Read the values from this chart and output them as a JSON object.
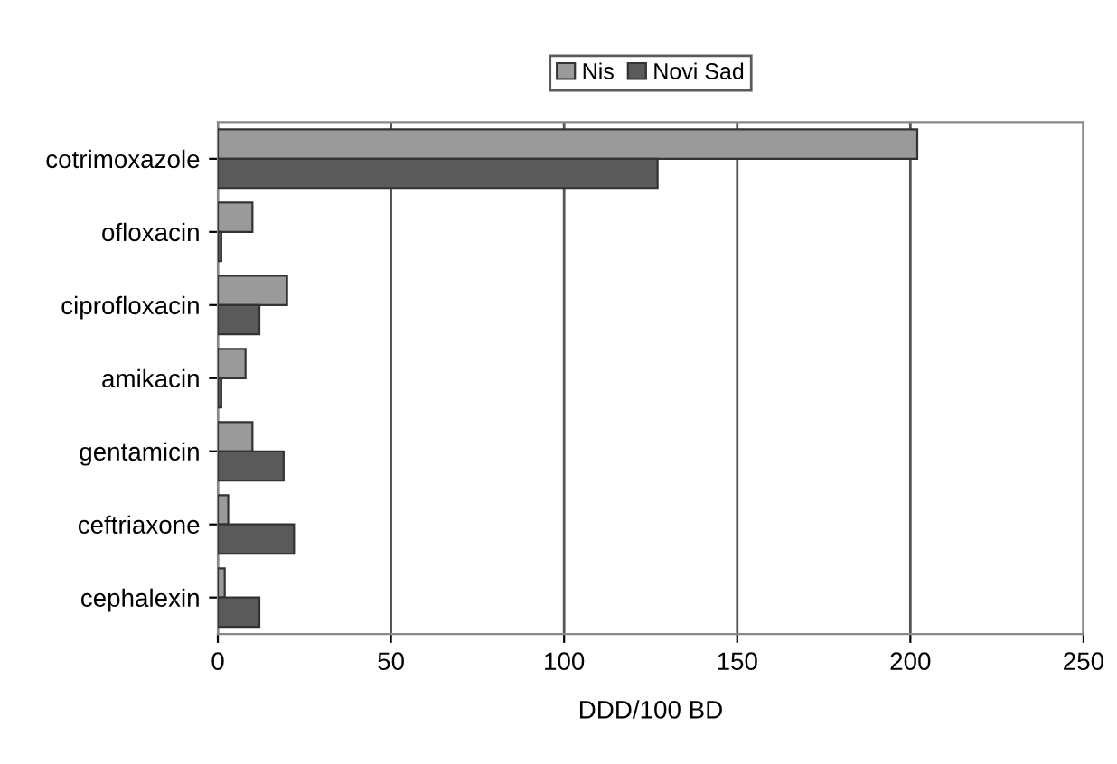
{
  "chart_data": {
    "type": "bar",
    "orientation": "horizontal",
    "xlabel": "DDD/100 BD",
    "categories": [
      "cotrimoxazole",
      "ofloxacin",
      "ciprofloxacin",
      "amikacin",
      "gentamicin",
      "ceftriaxone",
      "cephalexin"
    ],
    "series": [
      {
        "name": "Nis",
        "color": "#9a9a9a",
        "values": [
          202,
          10,
          20,
          8,
          10,
          3,
          2
        ]
      },
      {
        "name": "Novi Sad",
        "color": "#5a5a5a",
        "values": [
          127,
          1,
          12,
          1,
          19,
          22,
          12
        ]
      }
    ],
    "xlim": [
      0,
      250
    ],
    "xticks": [
      0,
      50,
      100,
      150,
      200,
      250
    ],
    "grid": "x",
    "legend": "top"
  }
}
